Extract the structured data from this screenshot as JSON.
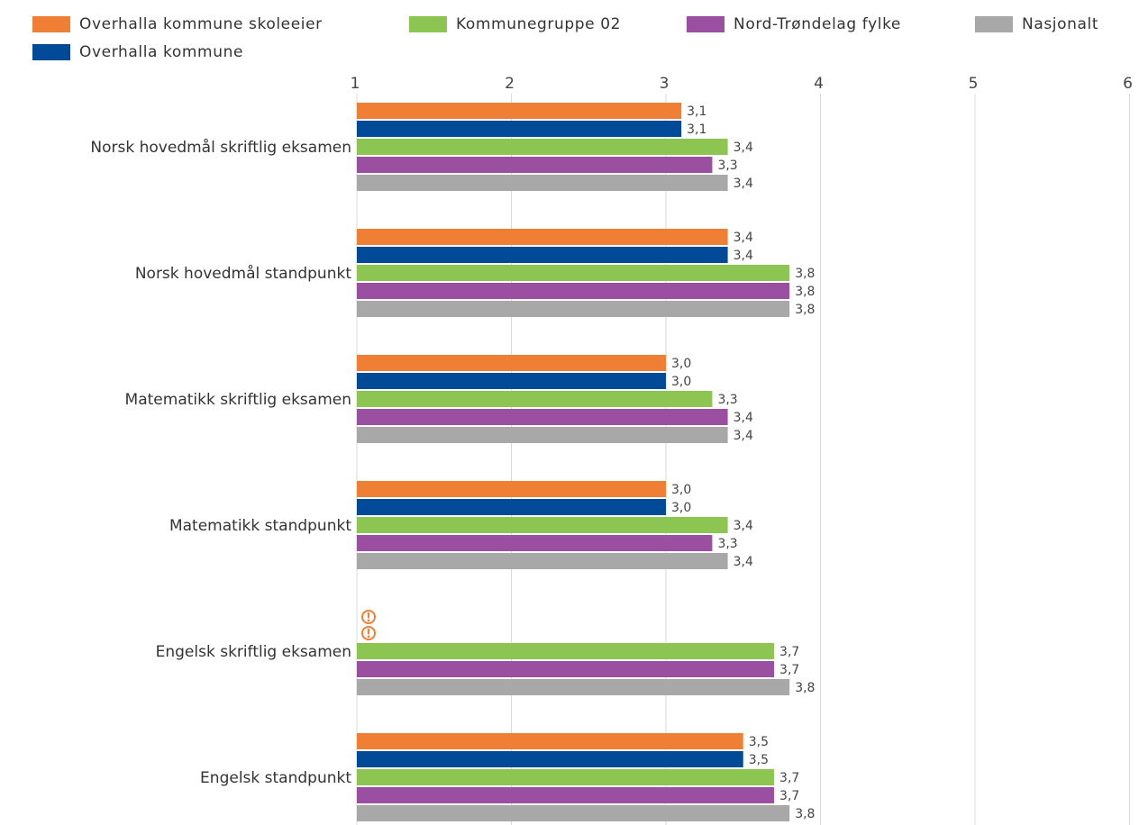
{
  "chart_data": {
    "type": "bar",
    "orientation": "horizontal",
    "xlim": [
      1,
      6
    ],
    "x_ticks": [
      "1",
      "2",
      "3",
      "4",
      "5",
      "6"
    ],
    "grid": true,
    "legend_position": "top",
    "categories": [
      "Norsk hovedmål skriftlig eksamen",
      "Norsk hovedmål standpunkt",
      "Matematikk skriftlig eksamen",
      "Matematikk standpunkt",
      "Engelsk skriftlig eksamen",
      "Engelsk standpunkt"
    ],
    "series": [
      {
        "name": "Overhalla kommune skoleeier",
        "color": "#f07f36",
        "values": [
          3.1,
          3.4,
          3.0,
          3.0,
          null,
          3.5
        ],
        "labels": [
          "3,1",
          "3,4",
          "3,0",
          "3,0",
          "",
          "3,5"
        ]
      },
      {
        "name": "Overhalla kommune",
        "color": "#004a97",
        "values": [
          3.1,
          3.4,
          3.0,
          3.0,
          null,
          3.5
        ],
        "labels": [
          "3,1",
          "3,4",
          "3,0",
          "3,0",
          "",
          "3,5"
        ]
      },
      {
        "name": "Kommunegruppe 02",
        "color": "#8cc552",
        "values": [
          3.4,
          3.8,
          3.3,
          3.4,
          3.7,
          3.7
        ],
        "labels": [
          "3,4",
          "3,8",
          "3,3",
          "3,4",
          "3,7",
          "3,7"
        ]
      },
      {
        "name": "Nord-Trøndelag fylke",
        "color": "#9b4fa0",
        "values": [
          3.3,
          3.8,
          3.4,
          3.3,
          3.7,
          3.7
        ],
        "labels": [
          "3,3",
          "3,8",
          "3,4",
          "3,3",
          "3,7",
          "3,7"
        ]
      },
      {
        "name": "Nasjonalt",
        "color": "#a8a8a8",
        "values": [
          3.4,
          3.8,
          3.4,
          3.4,
          3.8,
          3.8
        ],
        "labels": [
          "3,4",
          "3,8",
          "3,4",
          "3,4",
          "3,8",
          "3,8"
        ]
      }
    ],
    "missing_value_marker": {
      "icon": "warning-icon",
      "color": "#f07f36"
    }
  }
}
